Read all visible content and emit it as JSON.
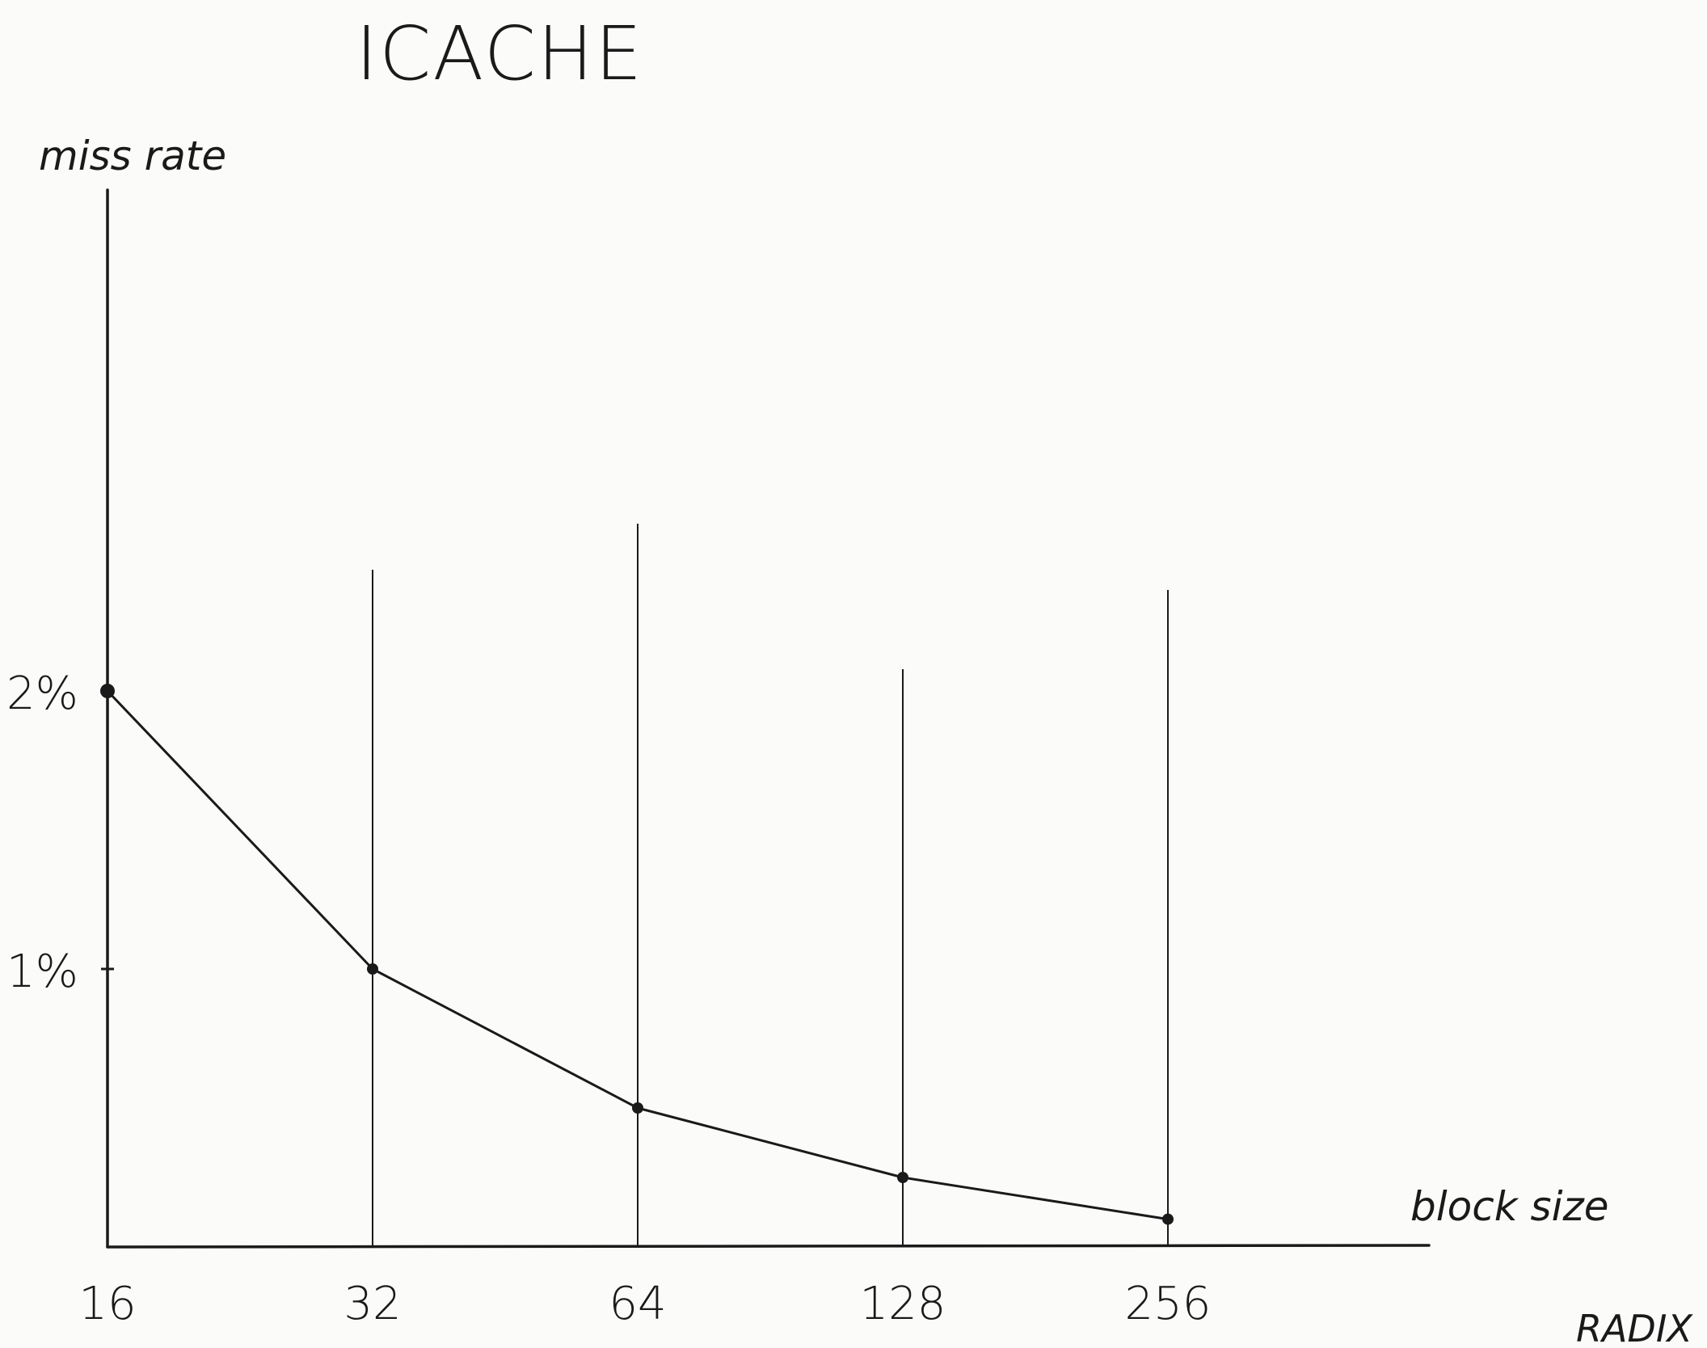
{
  "chart_data": {
    "type": "line",
    "title": "ICACHE",
    "xlabel": "block size",
    "ylabel": "miss rate",
    "categories": [
      "16",
      "32",
      "64",
      "128",
      "256"
    ],
    "values": [
      2.0,
      1.0,
      0.5,
      0.25,
      0.1
    ],
    "yticks": [
      {
        "value": 1,
        "label": "1%"
      },
      {
        "value": 2,
        "label": "2%"
      }
    ],
    "ylim": [
      0,
      2.4
    ],
    "grid": "vertical guide lines at each block size"
  },
  "corner_note": "RADIX",
  "colors": {
    "ink": "#1a1a1a",
    "paper": "#fbfbfa"
  }
}
